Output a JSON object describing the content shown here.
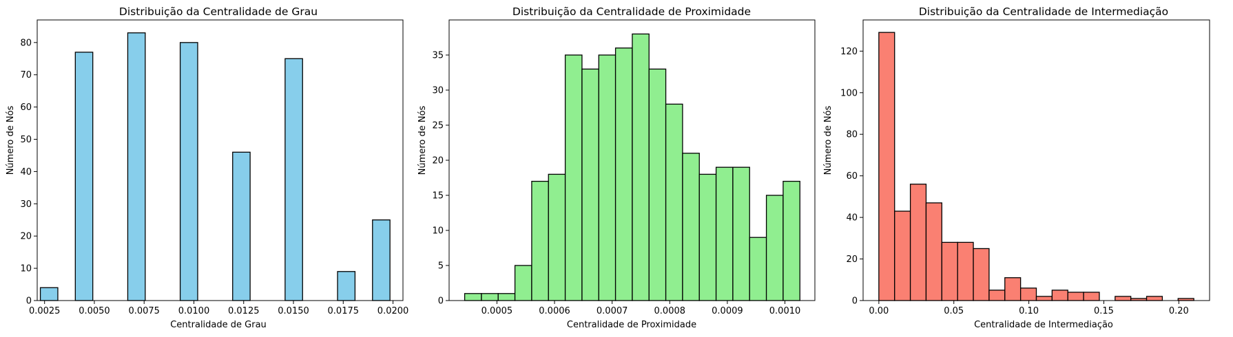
{
  "chart_data": [
    {
      "type": "bar",
      "title": "Distribuição da Centralidade de Grau",
      "xlabel": "Centralidade de Grau",
      "ylabel": "Número de Nós",
      "color": "#87CEEB",
      "edge_color": "#000000",
      "xlim": [
        0.00213,
        0.0205
      ],
      "ylim": [
        0,
        87
      ],
      "xticks": [
        0.0025,
        0.005,
        0.0075,
        0.01,
        0.0125,
        0.015,
        0.0175,
        0.02
      ],
      "xtick_labels": [
        "0.0025",
        "0.0050",
        "0.0075",
        "0.0100",
        "0.0125",
        "0.0150",
        "0.0175",
        "0.0200"
      ],
      "yticks": [
        0,
        10,
        20,
        30,
        40,
        50,
        60,
        70,
        80
      ],
      "ytick_labels": [
        "0",
        "10",
        "20",
        "30",
        "40",
        "50",
        "60",
        "70",
        "80"
      ],
      "bin_edges": [
        0.002288,
        0.003166,
        0.004044,
        0.004922,
        0.0058,
        0.006678,
        0.007556,
        0.008434,
        0.009312,
        0.01019,
        0.011068,
        0.011946,
        0.012824,
        0.013702,
        0.01458,
        0.015458,
        0.016336,
        0.017214,
        0.018092,
        0.01897,
        0.019848
      ],
      "values": [
        4,
        0,
        77,
        0,
        0,
        83,
        0,
        0,
        80,
        0,
        0,
        46,
        0,
        0,
        75,
        0,
        0,
        9,
        0,
        25
      ]
    },
    {
      "type": "bar",
      "title": "Distribuição da Centralidade de Proximidade",
      "xlabel": "Centralidade de Proximidade",
      "ylabel": "Número de Nós",
      "color": "#90EE90",
      "edge_color": "#000000",
      "xlim": [
        0.000417,
        0.001052
      ],
      "ylim": [
        0,
        40
      ],
      "xticks": [
        0.0005,
        0.0006,
        0.0007,
        0.0008,
        0.0009,
        0.001
      ],
      "xtick_labels": [
        "0.0005",
        "0.0006",
        "0.0007",
        "0.0008",
        "0.0009",
        "0.0010"
      ],
      "yticks": [
        0,
        5,
        10,
        15,
        20,
        25,
        30,
        35
      ],
      "ytick_labels": [
        "0",
        "5",
        "10",
        "15",
        "20",
        "25",
        "30",
        "35"
      ],
      "bin_edges": [
        0.000444,
        0.0004731,
        0.0005022,
        0.0005313,
        0.0005604,
        0.0005895,
        0.0006186,
        0.0006477,
        0.0006768,
        0.0007059,
        0.000735,
        0.0007641,
        0.0007932,
        0.0008223,
        0.0008514,
        0.0008805,
        0.0009096,
        0.0009387,
        0.0009678,
        0.0009969,
        0.001026
      ],
      "values": [
        1,
        1,
        1,
        5,
        17,
        18,
        35,
        33,
        35,
        36,
        38,
        33,
        28,
        21,
        18,
        19,
        19,
        9,
        15,
        17
      ]
    },
    {
      "type": "bar",
      "title": "Distribuição da Centralidade de Intermediação",
      "xlabel": "Centralidade de Intermediação",
      "ylabel": "Número de Nós",
      "color": "#FA8072",
      "edge_color": "#000000",
      "xlim": [
        -0.0105,
        0.2205
      ],
      "ylim": [
        0,
        135
      ],
      "xticks": [
        0,
        0.05,
        0.1,
        0.15,
        0.2
      ],
      "xtick_labels": [
        "0.00",
        "0.05",
        "0.10",
        "0.15",
        "0.20"
      ],
      "yticks": [
        0,
        20,
        40,
        60,
        80,
        100,
        120
      ],
      "ytick_labels": [
        "0",
        "20",
        "40",
        "60",
        "80",
        "100",
        "120"
      ],
      "bin_edges": [
        0,
        0.0105,
        0.021,
        0.0315,
        0.042,
        0.0525,
        0.063,
        0.0735,
        0.084,
        0.0945,
        0.105,
        0.1155,
        0.126,
        0.1365,
        0.147,
        0.1575,
        0.168,
        0.1785,
        0.189,
        0.1995,
        0.21
      ],
      "values": [
        129,
        43,
        56,
        47,
        28,
        28,
        25,
        5,
        11,
        6,
        2,
        5,
        4,
        4,
        0,
        2,
        1,
        2,
        0,
        1
      ]
    }
  ]
}
